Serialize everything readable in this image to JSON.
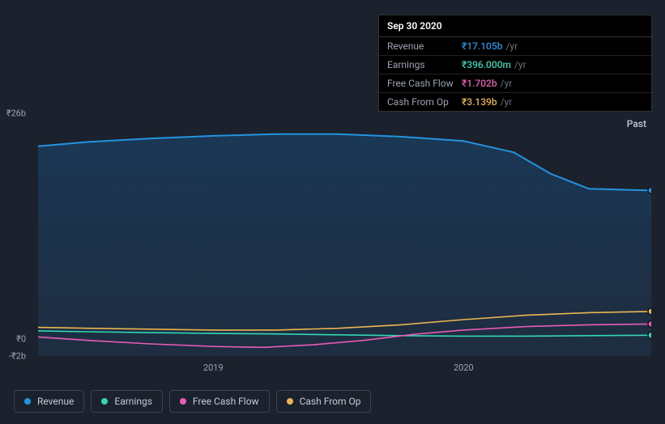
{
  "tooltip": {
    "date": "Sep 30 2020",
    "unit_suffix": "/yr",
    "rows": [
      {
        "label": "Revenue",
        "value": "₹17.105b",
        "color": "#2394df"
      },
      {
        "label": "Earnings",
        "value": "₹396.000m",
        "color": "#33d6b5"
      },
      {
        "label": "Free Cash Flow",
        "value": "₹1.702b",
        "color": "#e85bb5"
      },
      {
        "label": "Cash From Op",
        "value": "₹3.139b",
        "color": "#eab64f"
      }
    ]
  },
  "chart": {
    "type": "line",
    "background_fill_top": "#1a3a5a",
    "background_fill_bottom": "#20344d",
    "area_stroke": "#2b3648",
    "past_label": "Past",
    "y_axis": {
      "ticks": [
        {
          "value": 26,
          "label": "₹26b"
        },
        {
          "value": 0,
          "label": "₹0"
        },
        {
          "value": -2,
          "label": "-₹2b"
        }
      ],
      "min": -2,
      "max": 26
    },
    "x_axis": {
      "min": 2018.3,
      "max": 2020.75,
      "ticks": [
        {
          "value": 2019,
          "label": "2019"
        },
        {
          "value": 2020,
          "label": "2020"
        }
      ]
    },
    "series": [
      {
        "name": "Revenue",
        "color": "#2394df",
        "line_width": 2,
        "end_marker": true,
        "points": [
          [
            2018.3,
            22.2
          ],
          [
            2018.5,
            22.7
          ],
          [
            2018.75,
            23.1
          ],
          [
            2019.0,
            23.4
          ],
          [
            2019.25,
            23.6
          ],
          [
            2019.5,
            23.6
          ],
          [
            2019.75,
            23.3
          ],
          [
            2020.0,
            22.8
          ],
          [
            2020.2,
            21.5
          ],
          [
            2020.35,
            19.0
          ],
          [
            2020.5,
            17.3
          ],
          [
            2020.75,
            17.1
          ]
        ]
      },
      {
        "name": "Earnings",
        "color": "#33d6b5",
        "line_width": 1.6,
        "end_marker": true,
        "points": [
          [
            2018.3,
            0.9
          ],
          [
            2018.5,
            0.8
          ],
          [
            2018.75,
            0.7
          ],
          [
            2019.0,
            0.6
          ],
          [
            2019.25,
            0.55
          ],
          [
            2019.5,
            0.45
          ],
          [
            2019.75,
            0.35
          ],
          [
            2020.0,
            0.3
          ],
          [
            2020.25,
            0.3
          ],
          [
            2020.5,
            0.35
          ],
          [
            2020.75,
            0.4
          ]
        ]
      },
      {
        "name": "Free Cash Flow",
        "color": "#e85bb5",
        "line_width": 1.6,
        "end_marker": true,
        "points": [
          [
            2018.3,
            0.2
          ],
          [
            2018.5,
            -0.2
          ],
          [
            2018.75,
            -0.6
          ],
          [
            2019.0,
            -0.9
          ],
          [
            2019.2,
            -1.0
          ],
          [
            2019.4,
            -0.7
          ],
          [
            2019.6,
            -0.2
          ],
          [
            2019.8,
            0.5
          ],
          [
            2020.0,
            1.0
          ],
          [
            2020.25,
            1.4
          ],
          [
            2020.5,
            1.6
          ],
          [
            2020.75,
            1.7
          ]
        ]
      },
      {
        "name": "Cash From Op",
        "color": "#eab64f",
        "line_width": 1.6,
        "end_marker": true,
        "points": [
          [
            2018.3,
            1.3
          ],
          [
            2018.5,
            1.2
          ],
          [
            2018.75,
            1.1
          ],
          [
            2019.0,
            1.0
          ],
          [
            2019.25,
            1.0
          ],
          [
            2019.5,
            1.2
          ],
          [
            2019.75,
            1.6
          ],
          [
            2020.0,
            2.2
          ],
          [
            2020.25,
            2.7
          ],
          [
            2020.5,
            3.0
          ],
          [
            2020.75,
            3.14
          ]
        ]
      }
    ],
    "legend": [
      {
        "label": "Revenue",
        "color": "#2394df"
      },
      {
        "label": "Earnings",
        "color": "#33d6b5"
      },
      {
        "label": "Free Cash Flow",
        "color": "#e85bb5"
      },
      {
        "label": "Cash From Op",
        "color": "#eab64f"
      }
    ]
  }
}
